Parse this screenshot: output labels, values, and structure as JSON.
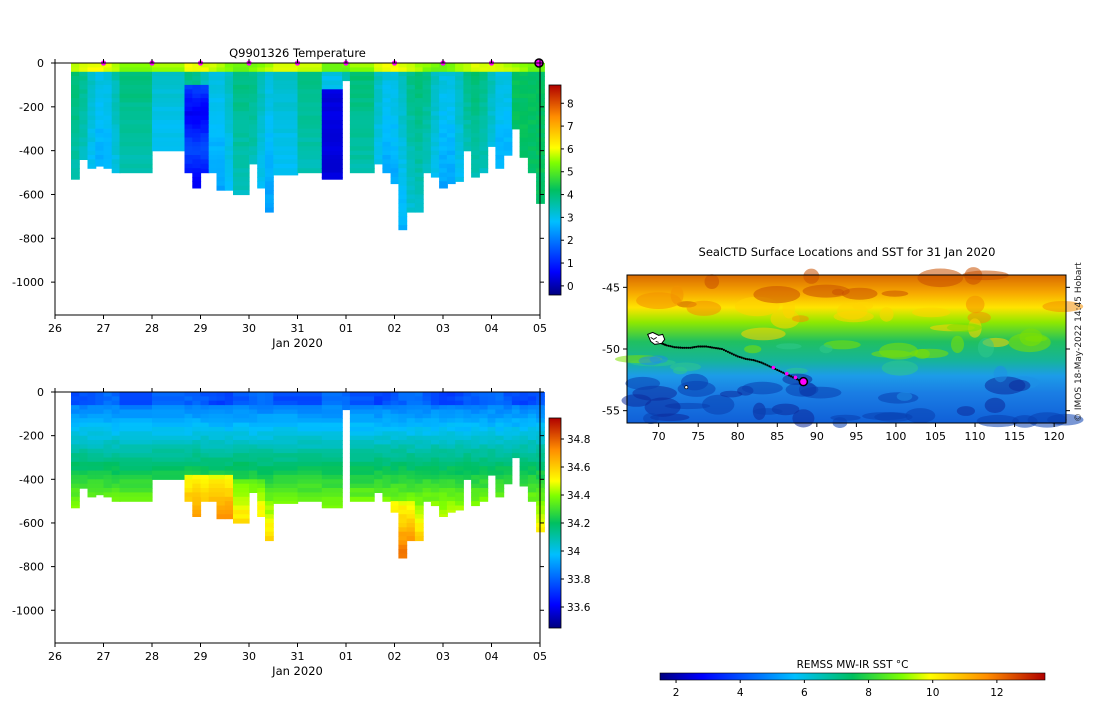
{
  "figure": {
    "copyright": "© IMOS 18-May-2022 14:45 Hobart"
  },
  "chart_data": [
    {
      "type": "heatmap",
      "title": "Q9901326  Temperature",
      "xlabel": "Jan 2020",
      "ylabel": "",
      "x_ticks": [
        "26",
        "27",
        "28",
        "29",
        "30",
        "31",
        "01",
        "02",
        "03",
        "04",
        "05"
      ],
      "x_range": [
        26,
        36
      ],
      "y_ticks": [
        0,
        -200,
        -400,
        -600,
        -800,
        -1000
      ],
      "y_range": [
        -1150,
        0
      ],
      "colorbar": {
        "ticks": [
          0,
          1,
          2,
          3,
          4,
          5,
          6,
          7,
          8
        ],
        "range": [
          -0.4,
          8.8
        ],
        "palette": "jet"
      },
      "profile_markers": [
        27,
        28,
        29,
        30,
        31,
        32,
        33,
        34,
        35
      ],
      "last_profile": 36,
      "profiles": [
        {
          "x": 26.33,
          "w": 0.17,
          "depth": 530
        },
        {
          "x": 26.5,
          "w": 0.17,
          "depth": 440
        },
        {
          "x": 26.67,
          "w": 0.17,
          "depth": 480
        },
        {
          "x": 26.83,
          "w": 0.17,
          "depth": 470
        },
        {
          "x": 27.0,
          "w": 0.17,
          "depth": 480
        },
        {
          "x": 27.17,
          "w": 0.17,
          "depth": 500
        },
        {
          "x": 27.33,
          "w": 0.67,
          "depth": 500
        },
        {
          "x": 28.0,
          "w": 0.67,
          "depth": 400
        },
        {
          "x": 28.67,
          "w": 0.5,
          "depth": 500
        },
        {
          "x": 28.83,
          "w": 0.17,
          "depth": 570
        },
        {
          "x": 29.0,
          "w": 0.17,
          "depth": 480
        },
        {
          "x": 29.17,
          "w": 0.17,
          "depth": 500
        },
        {
          "x": 29.33,
          "w": 0.17,
          "depth": 580
        },
        {
          "x": 29.5,
          "w": 0.17,
          "depth": 580
        },
        {
          "x": 29.67,
          "w": 0.33,
          "depth": 600
        },
        {
          "x": 30.0,
          "w": 0.17,
          "depth": 460
        },
        {
          "x": 30.17,
          "w": 0.17,
          "depth": 570
        },
        {
          "x": 30.33,
          "w": 0.17,
          "depth": 680
        },
        {
          "x": 30.5,
          "w": 0.5,
          "depth": 510
        },
        {
          "x": 31.0,
          "w": 0.5,
          "depth": 500
        },
        {
          "x": 31.5,
          "w": 0.42,
          "depth": 530
        },
        {
          "x": 31.92,
          "w": 0.17,
          "depth": 80
        },
        {
          "x": 32.08,
          "w": 0.5,
          "depth": 500
        },
        {
          "x": 32.58,
          "w": 0.17,
          "depth": 460
        },
        {
          "x": 32.75,
          "w": 0.17,
          "depth": 500
        },
        {
          "x": 32.92,
          "w": 0.17,
          "depth": 550
        },
        {
          "x": 33.08,
          "w": 0.17,
          "depth": 760
        },
        {
          "x": 33.25,
          "w": 0.17,
          "depth": 680
        },
        {
          "x": 33.42,
          "w": 0.17,
          "depth": 680
        },
        {
          "x": 33.58,
          "w": 0.17,
          "depth": 500
        },
        {
          "x": 33.75,
          "w": 0.17,
          "depth": 520
        },
        {
          "x": 33.92,
          "w": 0.17,
          "depth": 570
        },
        {
          "x": 34.08,
          "w": 0.17,
          "depth": 550
        },
        {
          "x": 34.25,
          "w": 0.17,
          "depth": 540
        },
        {
          "x": 34.42,
          "w": 0.17,
          "depth": 400
        },
        {
          "x": 34.58,
          "w": 0.17,
          "depth": 520
        },
        {
          "x": 34.75,
          "w": 0.17,
          "depth": 500
        },
        {
          "x": 34.92,
          "w": 0.17,
          "depth": 380
        },
        {
          "x": 35.08,
          "w": 0.17,
          "depth": 480
        },
        {
          "x": 35.25,
          "w": 0.17,
          "depth": 420
        },
        {
          "x": 35.42,
          "w": 0.17,
          "depth": 300
        },
        {
          "x": 35.58,
          "w": 0.17,
          "depth": 430
        },
        {
          "x": 35.75,
          "w": 0.17,
          "depth": 500
        },
        {
          "x": 35.92,
          "w": 0.17,
          "depth": 640
        }
      ]
    },
    {
      "type": "heatmap",
      "title": "",
      "xlabel": "Jan 2020",
      "ylabel": "",
      "x_ticks": [
        "26",
        "27",
        "28",
        "29",
        "30",
        "31",
        "01",
        "02",
        "03",
        "04",
        "05"
      ],
      "x_range": [
        26,
        36
      ],
      "y_ticks": [
        0,
        -200,
        -400,
        -600,
        -800,
        -1000
      ],
      "y_range": [
        -1150,
        0
      ],
      "colorbar": {
        "ticks": [
          33.6,
          33.8,
          34,
          34.2,
          34.4,
          34.6,
          34.8
        ],
        "labels": [
          "33.6",
          "33.8",
          "34",
          "34.2",
          "34.4",
          "34.6",
          "34.8"
        ],
        "range": [
          33.45,
          34.95
        ],
        "palette": "jet"
      },
      "profiles": "same as temperature section"
    },
    {
      "type": "heatmap",
      "title": "SealCTD Surface Locations and SST for 31 Jan 2020",
      "xlabel": "",
      "ylabel": "",
      "x_ticks": [
        70,
        75,
        80,
        85,
        90,
        95,
        100,
        105,
        110,
        115,
        120
      ],
      "x_range": [
        66,
        121.5
      ],
      "y_ticks": [
        -45,
        -50,
        -55
      ],
      "y_range": [
        -56,
        -44
      ],
      "colorbar": {
        "label": "REMSS MW-IR SST °C",
        "ticks": [
          2,
          4,
          6,
          8,
          10,
          12
        ],
        "range": [
          1.5,
          13.5
        ],
        "palette": "jet"
      },
      "track": [
        [
          69.3,
          -49.3
        ],
        [
          70.2,
          -49.5
        ],
        [
          71,
          -49.7
        ],
        [
          72,
          -49.85
        ],
        [
          73,
          -49.9
        ],
        [
          74,
          -49.9
        ],
        [
          75,
          -49.8
        ],
        [
          76,
          -49.8
        ],
        [
          77,
          -49.9
        ],
        [
          78,
          -50.0
        ],
        [
          79,
          -50.3
        ],
        [
          80,
          -50.6
        ],
        [
          81,
          -50.8
        ],
        [
          82,
          -50.9
        ],
        [
          83,
          -51.1
        ],
        [
          84,
          -51.4
        ],
        [
          85,
          -51.7
        ],
        [
          86,
          -52.0
        ],
        [
          87,
          -52.3
        ],
        [
          88,
          -52.6
        ]
      ],
      "track_colored": [
        [
          84.5,
          -51.5
        ],
        [
          86.2,
          -52.0
        ],
        [
          87.3,
          -52.3
        ]
      ],
      "track_start": [
        69.5,
        -49.3
      ],
      "track_end": [
        88.3,
        -52.65
      ]
    }
  ]
}
